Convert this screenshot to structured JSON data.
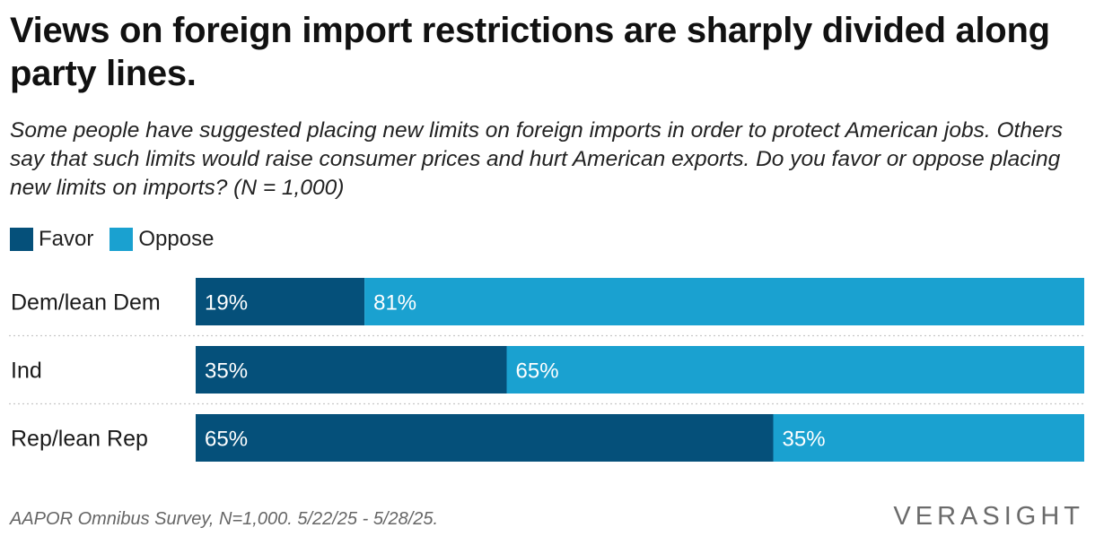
{
  "title": "Views on foreign import restrictions are sharply divided along party lines.",
  "subtitle": "Some people have suggested placing new limits on foreign imports in order to protect American jobs. Others say that such limits would raise consumer prices and hurt American exports. Do you favor or oppose placing new limits on imports? (N = 1,000)",
  "source_note": "AAPOR Omnibus Survey, N=1,000. 5/22/25 - 5/28/25.",
  "brand": "VERASIGHT",
  "chart_data": {
    "type": "bar",
    "orientation": "horizontal",
    "stacked": true,
    "categories": [
      "Dem/lean Dem",
      "Ind",
      "Rep/lean Rep"
    ],
    "series": [
      {
        "name": "Favor",
        "values": [
          19,
          35,
          65
        ],
        "labels": [
          "19%",
          "35%",
          "65%"
        ],
        "color": "#05507a"
      },
      {
        "name": "Oppose",
        "values": [
          81,
          65,
          35
        ],
        "labels": [
          "81%",
          "65%",
          "35%"
        ],
        "color": "#1aa1d0"
      }
    ],
    "xlim": [
      0,
      100
    ],
    "legend": "top-left",
    "grid": false
  }
}
